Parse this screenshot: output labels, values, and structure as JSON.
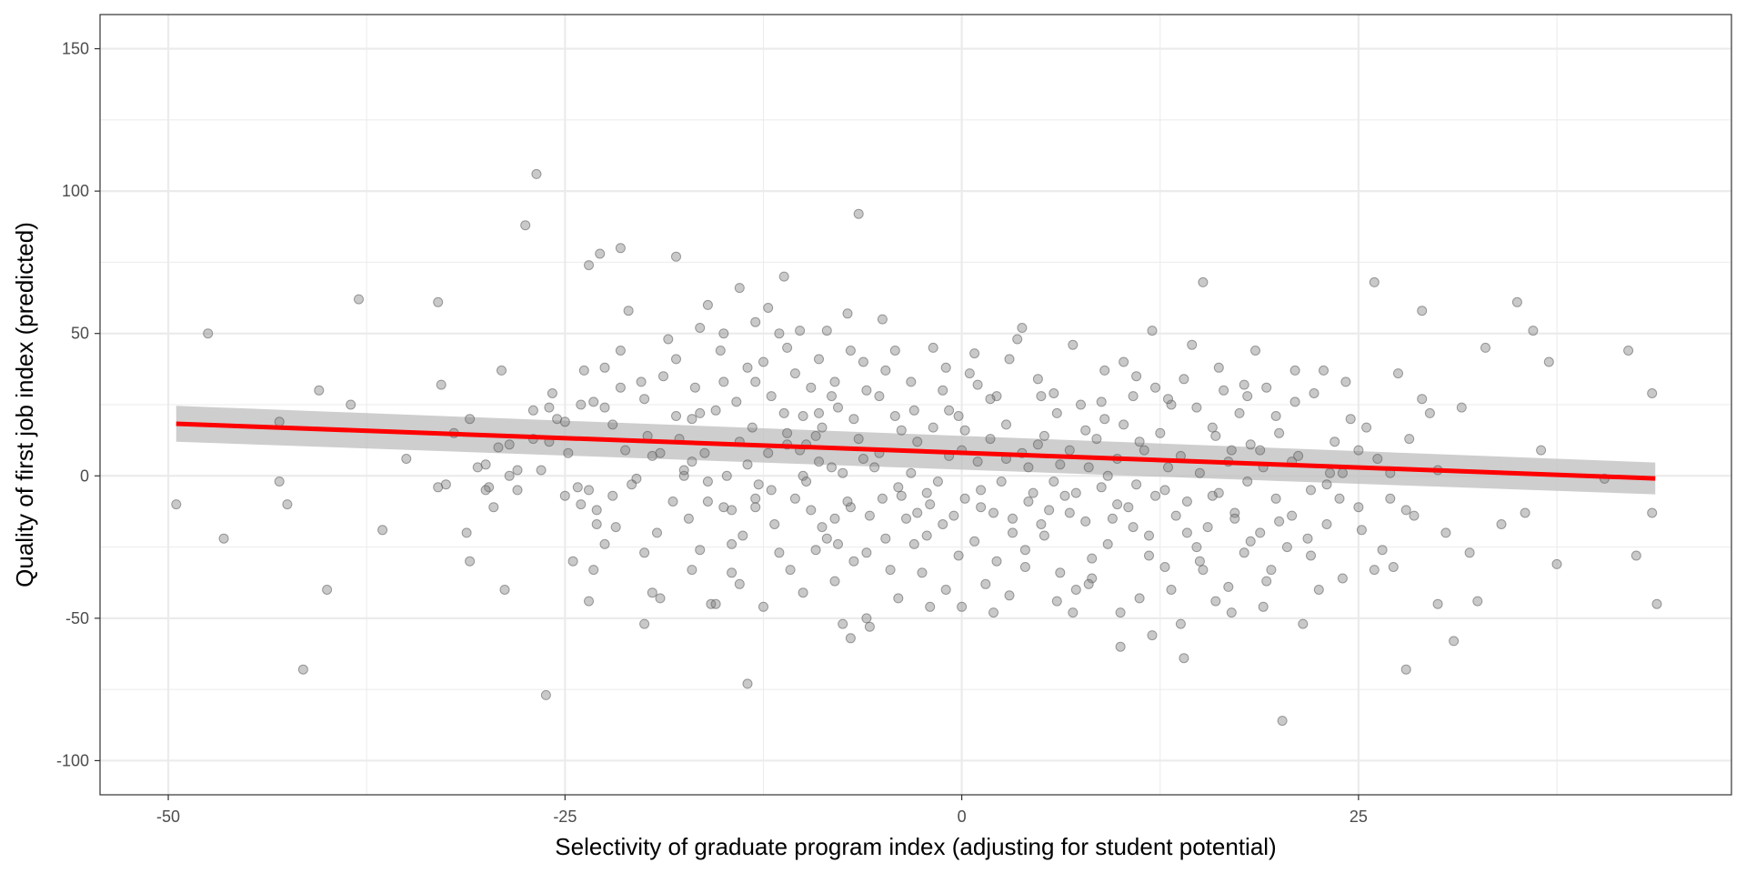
{
  "chart_data": {
    "type": "scatter",
    "title": "",
    "xlabel": "Selectivity of graduate program index (adjusting for student potential)",
    "ylabel": "Quality of first job index (predicted)",
    "xlim": [
      -54.3,
      48.5
    ],
    "ylim": [
      -112,
      162
    ],
    "x_ticks": [
      -50,
      -25,
      0,
      25
    ],
    "x_tick_labels": [
      "-50",
      "-25",
      "0",
      "25"
    ],
    "y_ticks": [
      -100,
      -50,
      0,
      50,
      100,
      150
    ],
    "y_tick_labels": [
      "-100",
      "-50",
      "0",
      "50",
      "100",
      "150"
    ],
    "grid": true,
    "legend": "none",
    "colors": {
      "points": "#7f7f7f",
      "fit_line": "#ff0000",
      "confidence_band": "#bdbdbd",
      "grid": "#ebebeb",
      "panel_border": "#333333"
    },
    "fit": {
      "method": "linear",
      "x": [
        -49.5,
        43.7
      ],
      "y": [
        18.3,
        -0.9
      ],
      "ci_lower": [
        12.0,
        -6.5
      ],
      "ci_upper": [
        24.6,
        4.7
      ]
    },
    "points": [
      [
        -49.5,
        -10
      ],
      [
        -47.5,
        50
      ],
      [
        -46.5,
        -22
      ],
      [
        -43,
        19
      ],
      [
        -43,
        -2
      ],
      [
        -42.5,
        -10
      ],
      [
        -41.5,
        -68
      ],
      [
        -40.5,
        30
      ],
      [
        -40,
        -40
      ],
      [
        -38.5,
        25
      ],
      [
        -38,
        62
      ],
      [
        -36.5,
        -19
      ],
      [
        -35,
        6
      ],
      [
        -33,
        61
      ],
      [
        -33,
        -4
      ],
      [
        -32.8,
        32
      ],
      [
        -32.5,
        -3
      ],
      [
        -32,
        15
      ],
      [
        -31.2,
        -20
      ],
      [
        -31,
        -30
      ],
      [
        -31,
        20
      ],
      [
        -30.5,
        3
      ],
      [
        -30,
        4
      ],
      [
        -29.8,
        -4
      ],
      [
        -29.5,
        -11
      ],
      [
        -29.2,
        10
      ],
      [
        -29,
        37
      ],
      [
        -28.8,
        -40
      ],
      [
        -28.5,
        11
      ],
      [
        -28.5,
        0
      ],
      [
        -28,
        -5
      ],
      [
        -27.5,
        88
      ],
      [
        -27,
        13
      ],
      [
        -26.8,
        106
      ],
      [
        -26.2,
        -77
      ],
      [
        -26,
        24
      ],
      [
        -25.8,
        29
      ],
      [
        -25.5,
        20
      ],
      [
        -25,
        19
      ],
      [
        -24.5,
        -30
      ],
      [
        -24,
        25
      ],
      [
        -23.8,
        37
      ],
      [
        -23.5,
        74
      ],
      [
        -23.5,
        -5
      ],
      [
        -23.5,
        -44
      ],
      [
        -23.2,
        26
      ],
      [
        -23.2,
        -33
      ],
      [
        -23,
        -12
      ],
      [
        -23,
        -17
      ],
      [
        -22.8,
        78
      ],
      [
        -22.5,
        24
      ],
      [
        -22.5,
        38
      ],
      [
        -22,
        -7
      ],
      [
        -21.5,
        44
      ],
      [
        -21.5,
        80
      ],
      [
        -21,
        58
      ],
      [
        -20.5,
        -1
      ],
      [
        -20,
        -52
      ],
      [
        -20,
        27
      ],
      [
        -19.5,
        -41
      ],
      [
        -19.5,
        7
      ],
      [
        -19,
        8
      ],
      [
        -18.5,
        48
      ],
      [
        -18,
        21
      ],
      [
        -18,
        77
      ],
      [
        -17.5,
        0
      ],
      [
        -17.5,
        2
      ],
      [
        -17,
        5
      ],
      [
        -17,
        20
      ],
      [
        -16.5,
        -26
      ],
      [
        -16.5,
        52
      ],
      [
        -16.5,
        22
      ],
      [
        -16,
        60
      ],
      [
        -16,
        -9
      ],
      [
        -15.8,
        -45
      ],
      [
        -15.5,
        -45
      ],
      [
        -15.5,
        23
      ],
      [
        -15,
        -11
      ],
      [
        -15,
        33
      ],
      [
        -14.5,
        -34
      ],
      [
        -14.5,
        -12
      ],
      [
        -14.5,
        -24
      ],
      [
        -14,
        12
      ],
      [
        -14,
        66
      ],
      [
        -13.5,
        38
      ],
      [
        -13.5,
        -73
      ],
      [
        -13.5,
        4
      ],
      [
        -13,
        -8
      ],
      [
        -13,
        -11
      ],
      [
        -13,
        33
      ],
      [
        -12.5,
        40
      ],
      [
        -12.5,
        -46
      ],
      [
        -12.2,
        59
      ],
      [
        -12,
        28
      ],
      [
        -11.5,
        50
      ],
      [
        -11.5,
        -27
      ],
      [
        -11.2,
        70
      ],
      [
        -11,
        11
      ],
      [
        -11,
        15
      ],
      [
        -10.5,
        -8
      ],
      [
        -10.5,
        36
      ],
      [
        -10.2,
        51
      ],
      [
        -10,
        21
      ],
      [
        -10,
        0
      ],
      [
        -9.8,
        11
      ],
      [
        -9.5,
        -12
      ],
      [
        -9.5,
        31
      ],
      [
        -9.2,
        -26
      ],
      [
        -9,
        41
      ],
      [
        -9,
        5
      ],
      [
        -8.8,
        17
      ],
      [
        -8.5,
        -22
      ],
      [
        -8.5,
        51
      ],
      [
        -8.2,
        28
      ],
      [
        -8,
        33
      ],
      [
        -8,
        -15
      ],
      [
        -7.8,
        -24
      ],
      [
        -7.5,
        -52
      ],
      [
        -7.5,
        1
      ],
      [
        -7.2,
        57
      ],
      [
        -7,
        -11
      ],
      [
        -7,
        -57
      ],
      [
        -6.8,
        20
      ],
      [
        -6.5,
        92
      ],
      [
        -6.5,
        13
      ],
      [
        -6.2,
        6
      ],
      [
        -6,
        -50
      ],
      [
        -6,
        30
      ],
      [
        -5.8,
        -53
      ],
      [
        -5.5,
        3
      ],
      [
        -5.2,
        28
      ],
      [
        -5,
        -8
      ],
      [
        -4.8,
        37
      ],
      [
        -4.5,
        -33
      ],
      [
        -4.2,
        21
      ],
      [
        -4,
        -4
      ],
      [
        -3.8,
        16
      ],
      [
        -3.5,
        -15
      ],
      [
        -3.2,
        1
      ],
      [
        -3,
        -24
      ],
      [
        -2.8,
        -13
      ],
      [
        -2.5,
        -34
      ],
      [
        -2.2,
        -21
      ],
      [
        -2,
        -10
      ],
      [
        -1.8,
        17
      ],
      [
        -1.5,
        -2
      ],
      [
        -1.2,
        30
      ],
      [
        -1,
        -40
      ],
      [
        -0.8,
        7
      ],
      [
        -0.5,
        -14
      ],
      [
        -0.2,
        21
      ],
      [
        0,
        9
      ],
      [
        0.2,
        -8
      ],
      [
        0.5,
        36
      ],
      [
        0.8,
        -23
      ],
      [
        1,
        5
      ],
      [
        1.2,
        -5
      ],
      [
        1.5,
        -38
      ],
      [
        1.8,
        13
      ],
      [
        2,
        -13
      ],
      [
        2.2,
        28
      ],
      [
        2.5,
        -2
      ],
      [
        2.8,
        18
      ],
      [
        3,
        -42
      ],
      [
        3.2,
        -15
      ],
      [
        3.5,
        48
      ],
      [
        3.8,
        8
      ],
      [
        4,
        -26
      ],
      [
        4.2,
        3
      ],
      [
        4.5,
        -6
      ],
      [
        4.8,
        34
      ],
      [
        5,
        -17
      ],
      [
        5.2,
        14
      ],
      [
        5.5,
        -12
      ],
      [
        5.8,
        -2
      ],
      [
        6,
        22
      ],
      [
        6.2,
        -34
      ],
      [
        6.5,
        -7
      ],
      [
        6.8,
        9
      ],
      [
        7,
        -48
      ],
      [
        7.2,
        -40
      ],
      [
        7.5,
        25
      ],
      [
        7.8,
        -16
      ],
      [
        8,
        3
      ],
      [
        8.2,
        -29
      ],
      [
        8.5,
        13
      ],
      [
        8.8,
        -4
      ],
      [
        9,
        37
      ],
      [
        9.2,
        -24
      ],
      [
        9.5,
        -15
      ],
      [
        9.8,
        6
      ],
      [
        10,
        -60
      ],
      [
        10.2,
        18
      ],
      [
        10.5,
        -11
      ],
      [
        10.8,
        28
      ],
      [
        11,
        -3
      ],
      [
        11.2,
        -43
      ],
      [
        11.5,
        9
      ],
      [
        11.8,
        -21
      ],
      [
        12,
        51
      ],
      [
        12.2,
        -7
      ],
      [
        12.5,
        15
      ],
      [
        12.8,
        -32
      ],
      [
        13,
        3
      ],
      [
        13.2,
        25
      ],
      [
        13.5,
        -14
      ],
      [
        13.8,
        -52
      ],
      [
        14,
        34
      ],
      [
        14.2,
        -9
      ],
      [
        14.5,
        46
      ],
      [
        14.8,
        -25
      ],
      [
        15,
        1
      ],
      [
        15.2,
        68
      ],
      [
        15.5,
        -18
      ],
      [
        15.8,
        17
      ],
      [
        16,
        -44
      ],
      [
        16.2,
        -6
      ],
      [
        16.5,
        30
      ],
      [
        16.8,
        -39
      ],
      [
        17,
        9
      ],
      [
        17.2,
        -13
      ],
      [
        17.5,
        22
      ],
      [
        17.8,
        -27
      ],
      [
        18,
        -2
      ],
      [
        18.2,
        11
      ],
      [
        18.5,
        44
      ],
      [
        18.8,
        -20
      ],
      [
        19,
        3
      ],
      [
        19.2,
        31
      ],
      [
        19.5,
        -33
      ],
      [
        19.8,
        -8
      ],
      [
        20,
        15
      ],
      [
        20.2,
        -86
      ],
      [
        20.5,
        -25
      ],
      [
        20.8,
        5
      ],
      [
        21,
        26
      ],
      [
        21.5,
        -52
      ],
      [
        22,
        -5
      ],
      [
        22.5,
        -40
      ],
      [
        22.8,
        37
      ],
      [
        23,
        -17
      ],
      [
        23.5,
        12
      ],
      [
        24,
        -36
      ],
      [
        24.5,
        20
      ],
      [
        25,
        -11
      ],
      [
        25.5,
        17
      ],
      [
        26,
        68
      ],
      [
        26.5,
        -26
      ],
      [
        27,
        -8
      ],
      [
        27.5,
        36
      ],
      [
        28,
        -68
      ],
      [
        28.5,
        -14
      ],
      [
        29,
        58
      ],
      [
        29.5,
        22
      ],
      [
        30,
        -45
      ],
      [
        30.5,
        -20
      ],
      [
        31,
        -58
      ],
      [
        31.5,
        24
      ],
      [
        32,
        -27
      ],
      [
        32.5,
        -44
      ],
      [
        33,
        45
      ],
      [
        34,
        -17
      ],
      [
        35,
        61
      ],
      [
        35.5,
        -13
      ],
      [
        36,
        51
      ],
      [
        36.5,
        9
      ],
      [
        37,
        40
      ],
      [
        37.5,
        -31
      ],
      [
        40.5,
        -1
      ],
      [
        42,
        44
      ],
      [
        42.5,
        -28
      ],
      [
        43.5,
        29
      ],
      [
        43.5,
        -13
      ],
      [
        43.8,
        -45
      ],
      [
        -27,
        23
      ],
      [
        -26.5,
        2
      ],
      [
        -26,
        12
      ],
      [
        -25,
        -7
      ],
      [
        -24.8,
        8
      ],
      [
        -24.2,
        -4
      ],
      [
        -22,
        18
      ],
      [
        -21.8,
        -18
      ],
      [
        -21.2,
        9
      ],
      [
        -20.8,
        -3
      ],
      [
        -20.2,
        33
      ],
      [
        -19.8,
        14
      ],
      [
        -19.2,
        -20
      ],
      [
        -18.8,
        35
      ],
      [
        -18.2,
        -9
      ],
      [
        -17.8,
        13
      ],
      [
        -17.2,
        -15
      ],
      [
        -16.8,
        31
      ],
      [
        -16.2,
        8
      ],
      [
        -15.2,
        44
      ],
      [
        -14.8,
        0
      ],
      [
        -14.2,
        26
      ],
      [
        -13.8,
        -21
      ],
      [
        -13.2,
        17
      ],
      [
        -12.8,
        -3
      ],
      [
        -12.2,
        8
      ],
      [
        -11.8,
        -17
      ],
      [
        -11.2,
        22
      ],
      [
        -10.8,
        -33
      ],
      [
        -10.2,
        9
      ],
      [
        -9.8,
        -2
      ],
      [
        -9.2,
        14
      ],
      [
        -8.8,
        -18
      ],
      [
        -8.2,
        3
      ],
      [
        -7.8,
        24
      ],
      [
        -7.2,
        -9
      ],
      [
        -6.8,
        -30
      ],
      [
        -6.2,
        40
      ],
      [
        -5.8,
        -14
      ],
      [
        -5.2,
        8
      ],
      [
        -4.8,
        -22
      ],
      [
        -4.2,
        44
      ],
      [
        -3.8,
        -7
      ],
      [
        -3.2,
        33
      ],
      [
        -2.8,
        12
      ],
      [
        -2.2,
        -6
      ],
      [
        -1.8,
        45
      ],
      [
        -1.2,
        -17
      ],
      [
        -0.8,
        23
      ],
      [
        -0.2,
        -28
      ],
      [
        0.2,
        16
      ],
      [
        0.8,
        43
      ],
      [
        1.2,
        -11
      ],
      [
        1.8,
        27
      ],
      [
        2.2,
        -30
      ],
      [
        2.8,
        6
      ],
      [
        3.2,
        -20
      ],
      [
        3.8,
        52
      ],
      [
        4.2,
        -9
      ],
      [
        4.8,
        11
      ],
      [
        5.2,
        -21
      ],
      [
        5.8,
        29
      ],
      [
        6.2,
        4
      ],
      [
        6.8,
        -13
      ],
      [
        7.2,
        -6
      ],
      [
        7.8,
        16
      ],
      [
        8.2,
        -36
      ],
      [
        8.8,
        26
      ],
      [
        9.2,
        0
      ],
      [
        9.8,
        -10
      ],
      [
        10.2,
        40
      ],
      [
        10.8,
        -18
      ],
      [
        11.2,
        12
      ],
      [
        11.8,
        -28
      ],
      [
        12.2,
        31
      ],
      [
        12.8,
        -5
      ],
      [
        13.2,
        -40
      ],
      [
        13.8,
        7
      ],
      [
        14.2,
        -20
      ],
      [
        14.8,
        24
      ],
      [
        15.2,
        -33
      ],
      [
        15.8,
        -7
      ],
      [
        16.2,
        38
      ],
      [
        16.8,
        5
      ],
      [
        17.2,
        -15
      ],
      [
        17.8,
        32
      ],
      [
        18.2,
        -23
      ],
      [
        18.8,
        9
      ],
      [
        19.2,
        -37
      ],
      [
        19.8,
        21
      ],
      [
        20.8,
        -14
      ],
      [
        21.2,
        7
      ],
      [
        21.8,
        -22
      ],
      [
        22.2,
        29
      ],
      [
        23.2,
        1
      ],
      [
        23.8,
        -8
      ],
      [
        24.2,
        33
      ],
      [
        25.2,
        -19
      ],
      [
        26.2,
        6
      ],
      [
        27.2,
        -32
      ],
      [
        28.2,
        13
      ],
      [
        -30,
        -5
      ],
      [
        -28,
        2
      ],
      [
        -24,
        -10
      ],
      [
        -22.5,
        -24
      ],
      [
        -21.5,
        31
      ],
      [
        -20,
        -27
      ],
      [
        -19,
        -43
      ],
      [
        -18,
        41
      ],
      [
        -17,
        -33
      ],
      [
        -16,
        -2
      ],
      [
        -15,
        50
      ],
      [
        -14,
        -38
      ],
      [
        -13,
        54
      ],
      [
        -12,
        -5
      ],
      [
        -11,
        45
      ],
      [
        -10,
        -41
      ],
      [
        -9,
        22
      ],
      [
        -8,
        -37
      ],
      [
        -7,
        44
      ],
      [
        -6,
        -27
      ],
      [
        -5,
        55
      ],
      [
        -4,
        -43
      ],
      [
        -3,
        23
      ],
      [
        -2,
        -46
      ],
      [
        -1,
        38
      ],
      [
        0,
        -46
      ],
      [
        1,
        32
      ],
      [
        2,
        -48
      ],
      [
        3,
        41
      ],
      [
        4,
        -32
      ],
      [
        5,
        28
      ],
      [
        6,
        -44
      ],
      [
        7,
        46
      ],
      [
        8,
        -38
      ],
      [
        9,
        20
      ],
      [
        10,
        -48
      ],
      [
        11,
        35
      ],
      [
        12,
        -56
      ],
      [
        13,
        27
      ],
      [
        14,
        -64
      ],
      [
        15,
        -30
      ],
      [
        16,
        14
      ],
      [
        17,
        -48
      ],
      [
        18,
        28
      ],
      [
        19,
        -46
      ],
      [
        20,
        -16
      ],
      [
        21,
        37
      ],
      [
        22,
        -28
      ],
      [
        23,
        -3
      ],
      [
        24,
        1
      ],
      [
        25,
        9
      ],
      [
        26,
        -33
      ],
      [
        27,
        1
      ],
      [
        28,
        -12
      ],
      [
        29,
        27
      ],
      [
        30,
        2
      ]
    ]
  }
}
